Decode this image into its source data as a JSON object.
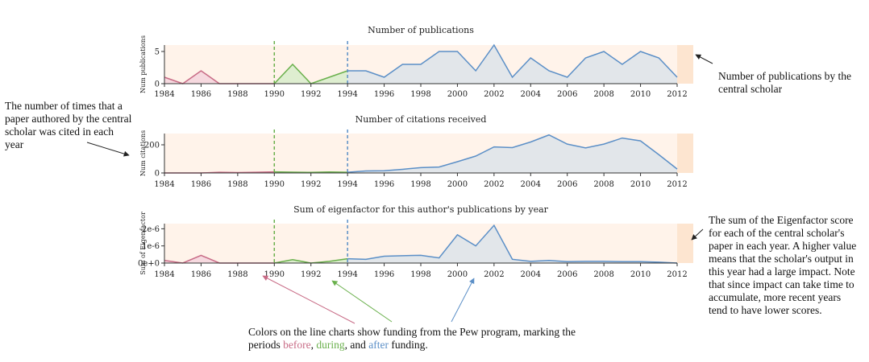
{
  "colors": {
    "before": "#c86b86",
    "during": "#6ab04c",
    "after": "#5b8fc7",
    "before_fill": "#f4d4dd",
    "during_fill": "#d8eccb",
    "after_fill": "#dde3ea",
    "band": "#fff3ea",
    "band_edge": "#fde5d0"
  },
  "period_lines": {
    "during_start": 1990,
    "after_start": 1994
  },
  "annotations": {
    "left": "The number of times that a paper authored by the central scholar was cited in each year",
    "right_top": "Number of publications by the central scholar",
    "right_bottom": "The sum of the Eigenfactor score for each of the central scholar's paper in each year. A higher value means that the scholar's output in this year had a large impact. Note that since impact can take time to accumulate, more recent years tend to have lower scores.",
    "bottom_prefix": "Colors on the line charts show funding from the Pew program, marking the periods ",
    "bottom_before": "before",
    "bottom_sep1": ", ",
    "bottom_during": "during",
    "bottom_sep2": ", and ",
    "bottom_after": "after",
    "bottom_suffix": " funding."
  },
  "chart_data": [
    {
      "type": "area",
      "title": "Number of publications",
      "ylabel": "Num publications",
      "x": [
        1984,
        1985,
        1986,
        1987,
        1988,
        1989,
        1990,
        1991,
        1992,
        1993,
        1994,
        1995,
        1996,
        1997,
        1998,
        1999,
        2000,
        2001,
        2002,
        2003,
        2004,
        2005,
        2006,
        2007,
        2008,
        2009,
        2010,
        2011,
        2012
      ],
      "y": [
        1,
        0,
        2,
        0,
        0,
        0,
        0,
        3,
        0,
        1,
        2,
        2,
        1,
        3,
        3,
        5,
        5,
        2,
        6,
        1,
        4,
        2,
        1,
        4,
        5,
        3,
        5,
        4,
        1
      ],
      "xlim": [
        1984,
        2012
      ],
      "ylim": [
        0,
        6
      ],
      "yticks": [
        "0",
        "5"
      ],
      "xticks": [
        "1984",
        "1986",
        "1988",
        "1990",
        "1992",
        "1994",
        "1996",
        "1998",
        "2000",
        "2002",
        "2004",
        "2006",
        "2008",
        "2010",
        "2012"
      ]
    },
    {
      "type": "area",
      "title": "Number of citations received",
      "ylabel": "Num citations",
      "x": [
        1984,
        1985,
        1986,
        1987,
        1988,
        1989,
        1990,
        1991,
        1992,
        1993,
        1994,
        1995,
        1996,
        1997,
        1998,
        1999,
        2000,
        2001,
        2002,
        2003,
        2004,
        2005,
        2006,
        2007,
        2008,
        2009,
        2010,
        2011,
        2012
      ],
      "y": [
        0,
        0,
        0,
        5,
        3,
        5,
        8,
        6,
        4,
        7,
        5,
        14,
        16,
        26,
        38,
        42,
        80,
        120,
        185,
        180,
        220,
        270,
        205,
        178,
        205,
        248,
        228,
        130,
        28
      ],
      "xlim": [
        1984,
        2012
      ],
      "ylim": [
        0,
        280
      ],
      "yticks": [
        "0",
        "200"
      ],
      "xticks": [
        "1984",
        "1986",
        "1988",
        "1990",
        "1992",
        "1994",
        "1996",
        "1998",
        "2000",
        "2002",
        "2004",
        "2006",
        "2008",
        "2010",
        "2012"
      ]
    },
    {
      "type": "area",
      "title": "Sum of eigenfactor for this author's publications by year",
      "ylabel": "Sum of Eigenfactor",
      "x": [
        1984,
        1985,
        1986,
        1987,
        1988,
        1989,
        1990,
        1991,
        1992,
        1993,
        1994,
        1995,
        1996,
        1997,
        1998,
        1999,
        2000,
        2001,
        2002,
        2003,
        2004,
        2005,
        2006,
        2007,
        2008,
        2009,
        2010,
        2011,
        2012
      ],
      "y": [
        1.5e-07,
        0,
        4.5e-07,
        0,
        0,
        0,
        0,
        2e-07,
        0,
        1e-07,
        2.5e-07,
        2.2e-07,
        4e-07,
        4.3e-07,
        4.5e-07,
        3e-07,
        1.65e-06,
        1e-06,
        2.2e-06,
        2.2e-07,
        1e-07,
        1.5e-07,
        8e-08,
        1e-07,
        1e-07,
        8e-08,
        8e-08,
        5e-08,
        0
      ],
      "xlim": [
        1984,
        2012
      ],
      "ylim": [
        0,
        2.3e-06
      ],
      "yticks": [
        "0e+0",
        "1e-6",
        "2e-6"
      ],
      "xticks": [
        "1984",
        "1986",
        "1988",
        "1990",
        "1992",
        "1994",
        "1996",
        "1998",
        "2000",
        "2002",
        "2004",
        "2006",
        "2008",
        "2010",
        "2012"
      ]
    }
  ]
}
